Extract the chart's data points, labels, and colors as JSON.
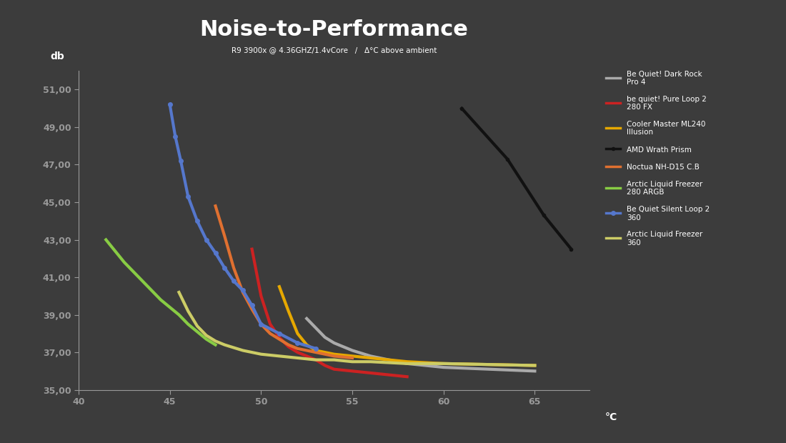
{
  "title": "Noise-to-Performance",
  "subtitle": "R9 3900x @ 4.36GHZ/1.4vCore   /   Δ°C above ambient",
  "xlabel": "°C",
  "ylabel": "db",
  "background_color": "#3c3c3c",
  "text_color": "#ffffff",
  "axis_color": "#999999",
  "xlim": [
    40,
    68
  ],
  "ylim": [
    35.0,
    52.0
  ],
  "yticks": [
    35.0,
    37.0,
    39.0,
    41.0,
    43.0,
    45.0,
    47.0,
    49.0,
    51.0
  ],
  "xticks": [
    40,
    45,
    50,
    55,
    60,
    65
  ],
  "series": [
    {
      "label": "Be Quiet! Dark Rock\nPro 4",
      "color": "#aaaaaa",
      "linewidth": 3.0,
      "marker": null,
      "x": [
        52.5,
        53.0,
        53.5,
        54.0,
        55.0,
        56.0,
        57.0,
        58.0,
        60.0,
        65.0
      ],
      "y": [
        38.8,
        38.3,
        37.8,
        37.5,
        37.1,
        36.8,
        36.6,
        36.4,
        36.2,
        36.0
      ]
    },
    {
      "label": "be quiet! Pure Loop 2\n280 FX",
      "color": "#cc2222",
      "linewidth": 3.0,
      "marker": null,
      "x": [
        49.5,
        50.0,
        50.5,
        51.0,
        51.5,
        52.0,
        52.5,
        53.0,
        53.5,
        54.0,
        55.0,
        57.0,
        58.0
      ],
      "y": [
        42.5,
        40.0,
        38.5,
        37.8,
        37.3,
        37.0,
        36.8,
        36.6,
        36.3,
        36.1,
        36.0,
        35.8,
        35.7
      ]
    },
    {
      "label": "Cooler Master ML240\nIllusion",
      "color": "#e6a800",
      "linewidth": 3.0,
      "marker": null,
      "x": [
        51.0,
        51.5,
        52.0,
        52.5,
        53.0,
        54.0,
        55.0,
        56.0,
        57.0,
        58.0,
        60.0,
        65.0
      ],
      "y": [
        40.5,
        39.2,
        38.0,
        37.4,
        37.1,
        36.9,
        36.8,
        36.7,
        36.6,
        36.5,
        36.4,
        36.3
      ]
    },
    {
      "label": "AMD Wrath Prism",
      "color": "#111111",
      "linewidth": 3.0,
      "marker": "o",
      "markersize": 3,
      "x": [
        61.0,
        63.5,
        65.5,
        67.0
      ],
      "y": [
        50.0,
        47.3,
        44.3,
        42.5
      ]
    },
    {
      "label": "Noctua NH-D15 C.B",
      "color": "#e07030",
      "linewidth": 3.0,
      "marker": null,
      "x": [
        47.5,
        48.0,
        48.5,
        49.0,
        49.5,
        50.0,
        50.5,
        51.0,
        51.5,
        52.0,
        53.0,
        54.0,
        55.0
      ],
      "y": [
        44.8,
        43.2,
        41.5,
        40.2,
        39.3,
        38.5,
        38.0,
        37.7,
        37.4,
        37.2,
        37.0,
        36.8,
        36.7
      ]
    },
    {
      "label": "Arctic Liquid Freezer\n280 ARGB",
      "color": "#88cc44",
      "linewidth": 3.0,
      "marker": null,
      "x": [
        41.5,
        42.0,
        42.5,
        43.0,
        43.5,
        44.0,
        44.5,
        45.0,
        45.5,
        46.0,
        46.5,
        47.0,
        47.5
      ],
      "y": [
        43.0,
        42.4,
        41.8,
        41.3,
        40.8,
        40.3,
        39.8,
        39.4,
        39.0,
        38.5,
        38.1,
        37.7,
        37.4
      ]
    },
    {
      "label": "Be Quiet Silent Loop 2\n360",
      "color": "#5577cc",
      "linewidth": 3.0,
      "marker": "o",
      "markersize": 4,
      "x": [
        45.0,
        45.3,
        45.6,
        46.0,
        46.5,
        47.0,
        47.5,
        48.0,
        48.5,
        49.0,
        49.5,
        50.0,
        51.0,
        52.0,
        53.0
      ],
      "y": [
        50.2,
        48.5,
        47.2,
        45.3,
        44.0,
        43.0,
        42.3,
        41.5,
        40.8,
        40.3,
        39.5,
        38.5,
        38.0,
        37.5,
        37.2
      ]
    },
    {
      "label": "Arctic Liquid Freezer\n360",
      "color": "#cccc66",
      "linewidth": 3.0,
      "marker": null,
      "x": [
        45.5,
        46.0,
        46.5,
        47.0,
        47.5,
        48.0,
        49.0,
        50.0,
        51.0,
        52.0,
        53.0,
        54.0,
        55.0,
        56.0,
        58.0,
        60.0,
        65.0
      ],
      "y": [
        40.2,
        39.2,
        38.4,
        37.9,
        37.6,
        37.4,
        37.1,
        36.9,
        36.8,
        36.7,
        36.6,
        36.6,
        36.5,
        36.5,
        36.4,
        36.4,
        36.3
      ]
    }
  ]
}
